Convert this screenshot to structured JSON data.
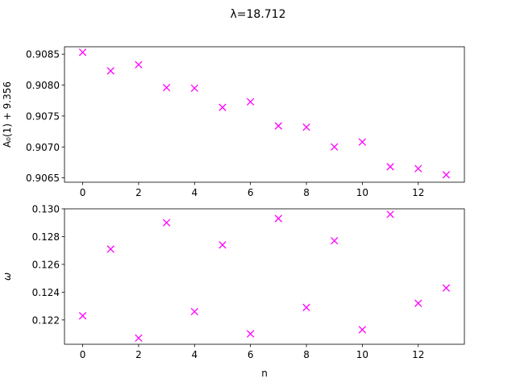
{
  "figure": {
    "title": "λ=18.712",
    "marker_color": "#ff00ff"
  },
  "chart_data": [
    {
      "type": "scatter",
      "marker": "x",
      "xlabel": "",
      "ylabel": "A₀(1) + 9.356",
      "xlim": [
        -0.65,
        13.65
      ],
      "ylim": [
        0.90643,
        0.90862
      ],
      "xticks": [
        0,
        2,
        4,
        6,
        8,
        10,
        12
      ],
      "xtick_labels": [
        "0",
        "2",
        "4",
        "6",
        "8",
        "10",
        "12"
      ],
      "yticks": [
        0.9065,
        0.907,
        0.9075,
        0.908,
        0.9085
      ],
      "ytick_labels": [
        "0.9065",
        "0.9070",
        "0.9075",
        "0.9080",
        "0.9085"
      ],
      "x": [
        0,
        1,
        2,
        3,
        4,
        5,
        6,
        7,
        8,
        9,
        10,
        11,
        12,
        13
      ],
      "y": [
        0.90853,
        0.90823,
        0.90833,
        0.90796,
        0.90795,
        0.90764,
        0.90773,
        0.90734,
        0.90732,
        0.907,
        0.90708,
        0.90668,
        0.90665,
        0.90655
      ]
    },
    {
      "type": "scatter",
      "marker": "x",
      "xlabel": "n",
      "ylabel": "ω",
      "xlim": [
        -0.65,
        13.65
      ],
      "ylim": [
        0.12025,
        0.13
      ],
      "xticks": [
        0,
        2,
        4,
        6,
        8,
        10,
        12
      ],
      "xtick_labels": [
        "0",
        "2",
        "4",
        "6",
        "8",
        "10",
        "12"
      ],
      "yticks": [
        0.122,
        0.124,
        0.126,
        0.128,
        0.13
      ],
      "ytick_labels": [
        "0.122",
        "0.124",
        "0.126",
        "0.128",
        "0.130"
      ],
      "x": [
        0,
        1,
        2,
        3,
        4,
        5,
        6,
        7,
        8,
        9,
        10,
        11,
        12,
        13
      ],
      "y": [
        0.1223,
        0.1271,
        0.1207,
        0.129,
        0.1226,
        0.1274,
        0.121,
        0.1293,
        0.1229,
        0.1277,
        0.1213,
        0.1296,
        0.1232,
        0.1243
      ]
    }
  ]
}
